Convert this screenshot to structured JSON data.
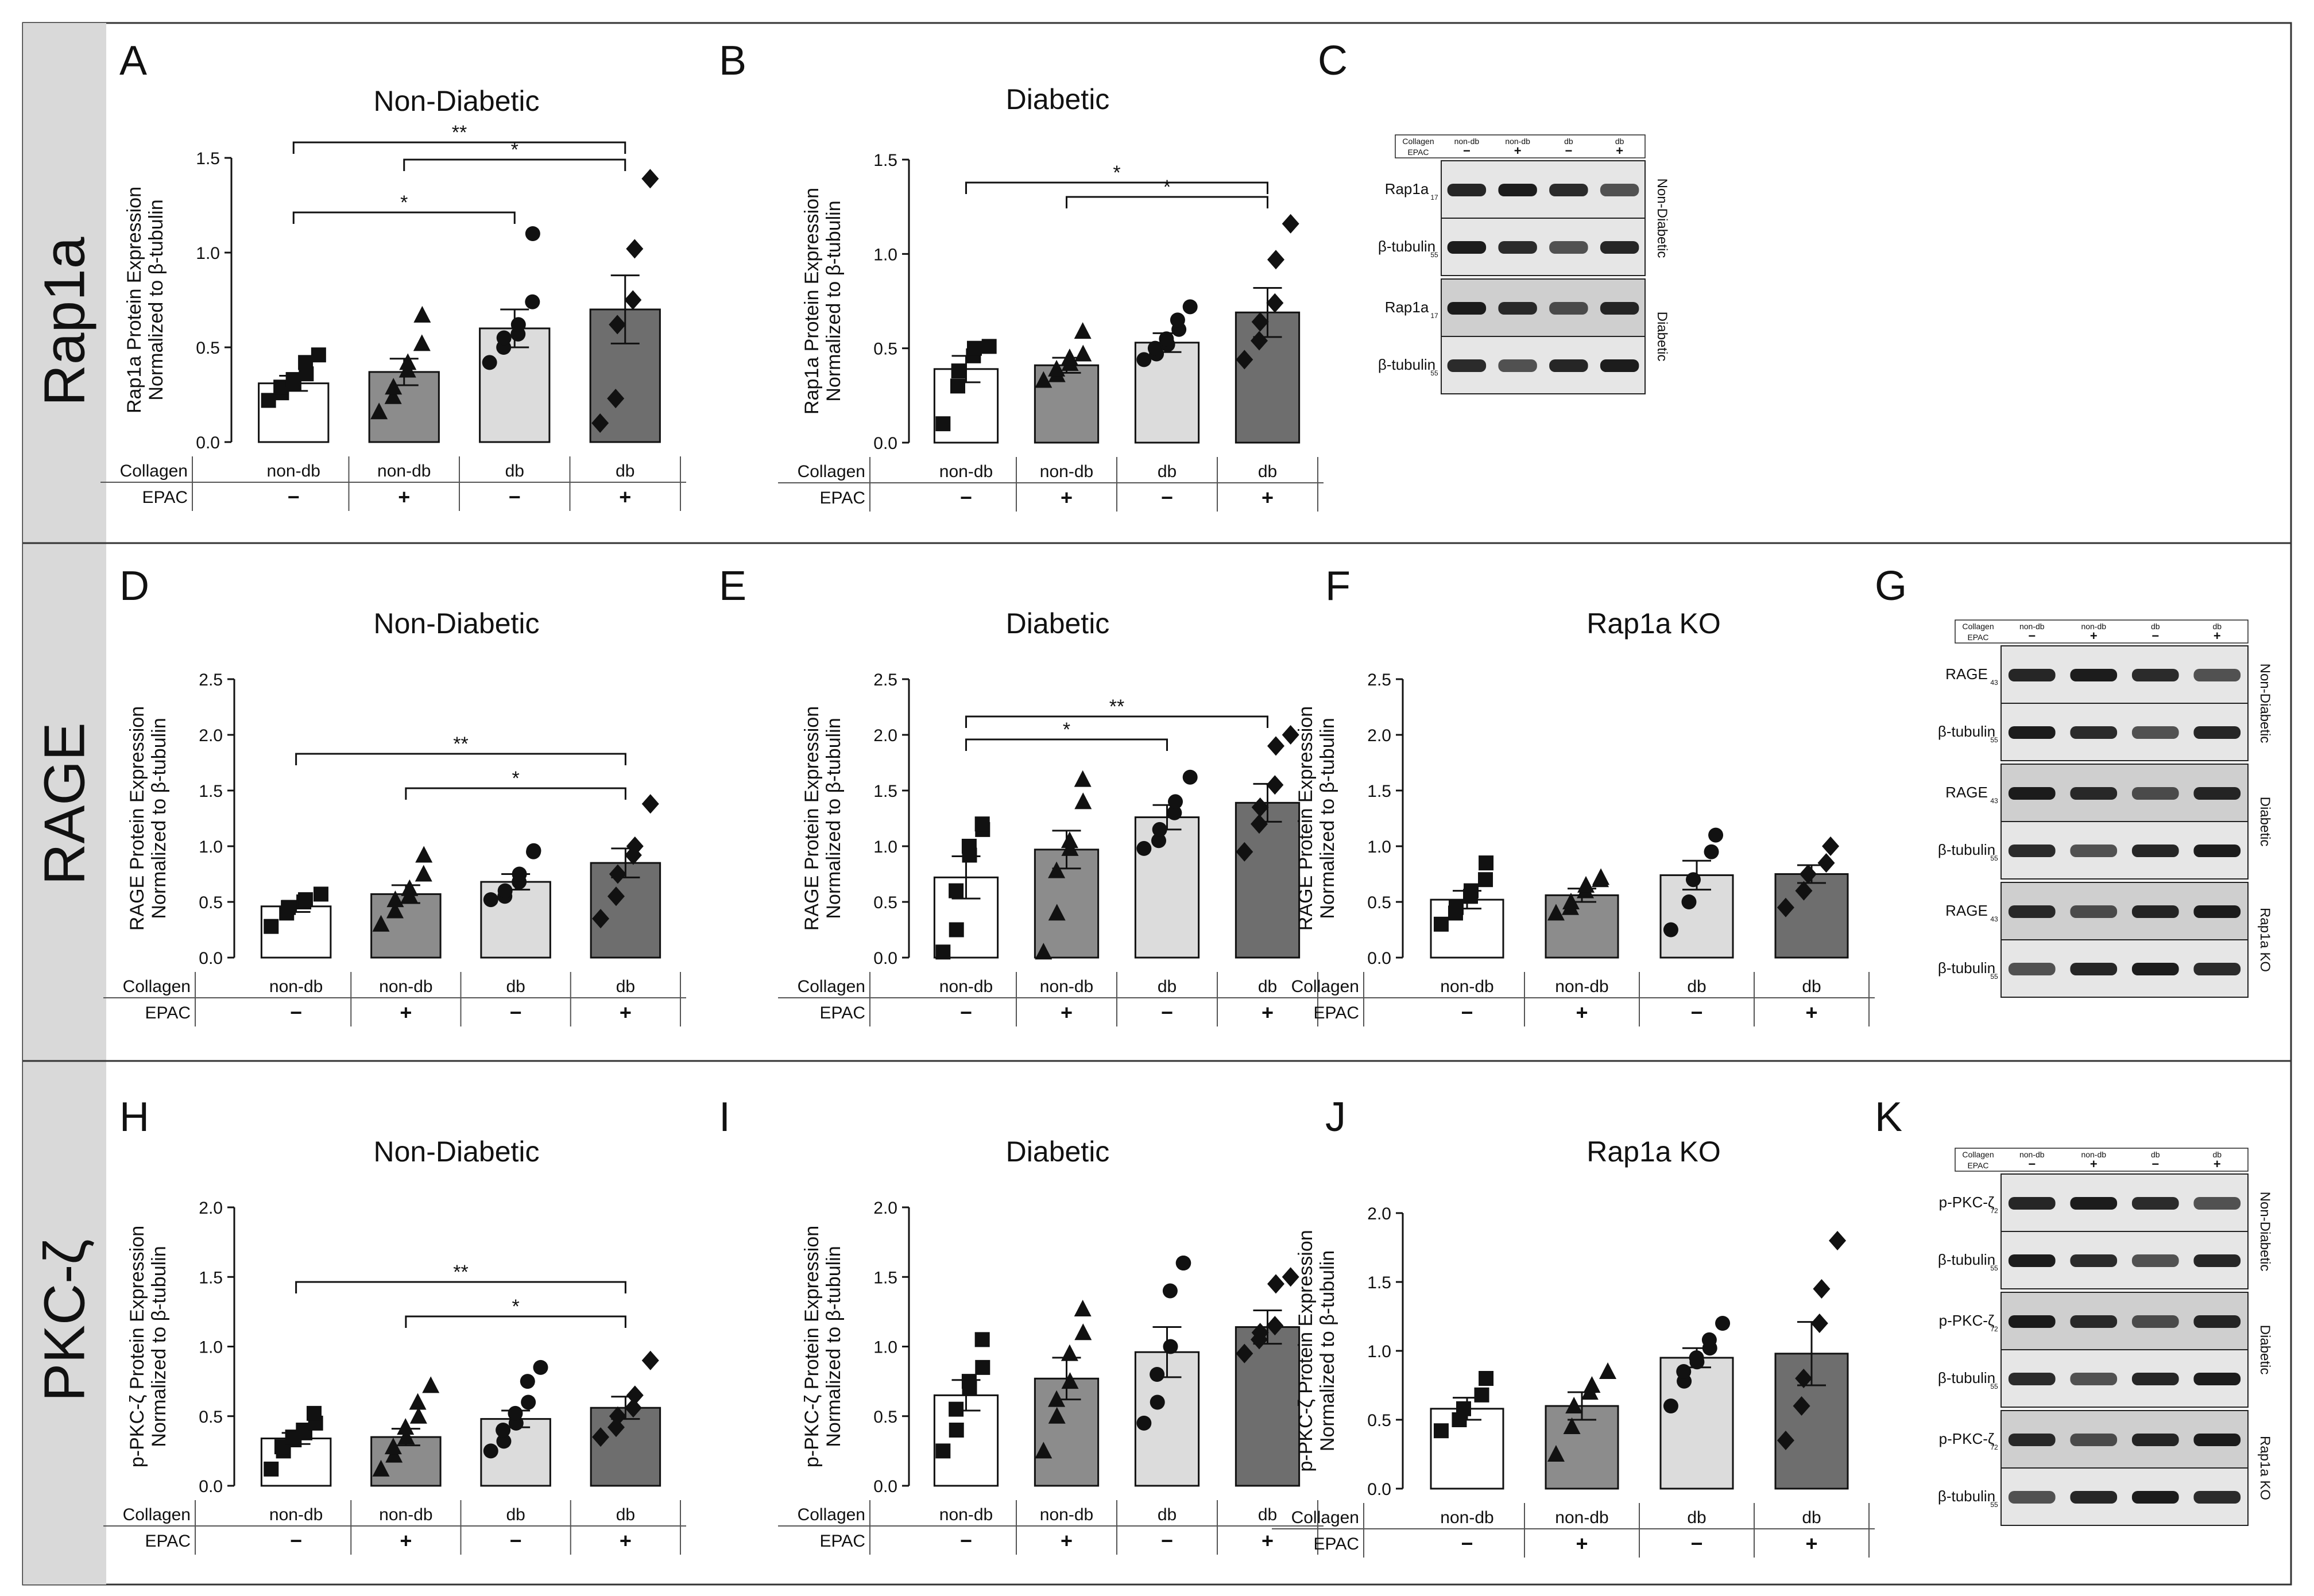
{
  "figure": {
    "rows": [
      {
        "label": "Rap1a",
        "name": "row-label-rap1a"
      },
      {
        "label": "RAGE",
        "name": "row-label-rage"
      },
      {
        "label": "PKC-ζ",
        "name": "row-label-pkc-zeta"
      }
    ],
    "collagen_label": "Collagen",
    "epac_label": "EPAC",
    "collagen_values": [
      "non-db",
      "non-db",
      "db",
      "db"
    ],
    "epac_values": [
      "−",
      "+",
      "−",
      "+"
    ],
    "bar_colors": [
      "#ffffff",
      "#8c8c8c",
      "#dcdcdc",
      "#6e6e6e"
    ]
  },
  "chart_data": [
    {
      "panel": "A",
      "type": "bar",
      "title": "Non-Diabetic",
      "ylabel": [
        "Rap1a Protein Expression",
        "Normalized to β-tubulin"
      ],
      "ylim": [
        0,
        1.5
      ],
      "yticks": [
        "0.0",
        "0.5",
        "1.0",
        "1.5"
      ],
      "categories": [
        "non-db/−",
        "non-db/+",
        "db/−",
        "db/+"
      ],
      "values": [
        0.31,
        0.37,
        0.6,
        0.7
      ],
      "sem": [
        0.04,
        0.07,
        0.1,
        0.18
      ],
      "points": [
        [
          0.22,
          0.26,
          0.29,
          0.31,
          0.33,
          0.36,
          0.42,
          0.46
        ],
        [
          0.16,
          0.24,
          0.29,
          0.38,
          0.42,
          0.52,
          0.67
        ],
        [
          0.42,
          0.5,
          0.55,
          0.57,
          0.62,
          0.74,
          1.1
        ],
        [
          0.1,
          0.23,
          0.62,
          0.75,
          1.02,
          1.39
        ]
      ],
      "markers": [
        "square",
        "triangle",
        "circle",
        "diamond"
      ],
      "significance": [
        {
          "from": 0,
          "to": 3,
          "label": "**"
        },
        {
          "from": 1,
          "to": 3,
          "label": "*"
        },
        {
          "from": 0,
          "to": 2,
          "label": "*"
        }
      ]
    },
    {
      "panel": "B",
      "type": "bar",
      "title": "Diabetic",
      "ylabel": [
        "Rap1a Protein Expression",
        "Normalized to β-tubulin"
      ],
      "ylim": [
        0,
        1.5
      ],
      "yticks": [
        "0.0",
        "0.5",
        "1.0",
        "1.5"
      ],
      "categories": [
        "non-db/−",
        "non-db/+",
        "db/−",
        "db/+"
      ],
      "values": [
        0.39,
        0.41,
        0.53,
        0.69
      ],
      "sem": [
        0.07,
        0.04,
        0.05,
        0.13
      ],
      "points": [
        [
          0.1,
          0.3,
          0.38,
          0.46,
          0.5,
          0.51
        ],
        [
          0.33,
          0.36,
          0.39,
          0.42,
          0.45,
          0.47,
          0.59
        ],
        [
          0.44,
          0.47,
          0.5,
          0.52,
          0.55,
          0.6,
          0.65,
          0.72
        ],
        [
          0.44,
          0.54,
          0.64,
          0.74,
          0.97,
          1.16
        ]
      ],
      "markers": [
        "square",
        "triangle",
        "circle",
        "diamond"
      ],
      "significance": [
        {
          "from": 0,
          "to": 3,
          "label": "*"
        },
        {
          "from": 1,
          "to": 3,
          "label": "*"
        }
      ]
    },
    {
      "panel": "D",
      "type": "bar",
      "title": "Non-Diabetic",
      "ylabel": [
        "RAGE Protein Expression",
        "Normalized to β-tubulin"
      ],
      "ylim": [
        0,
        2.5
      ],
      "yticks": [
        "0.0",
        "0.5",
        "1.0",
        "1.5",
        "2.0",
        "2.5"
      ],
      "categories": [
        "non-db/−",
        "non-db/+",
        "db/−",
        "db/+"
      ],
      "values": [
        0.46,
        0.57,
        0.68,
        0.85
      ],
      "sem": [
        0.05,
        0.08,
        0.07,
        0.13
      ],
      "points": [
        [
          0.28,
          0.4,
          0.45,
          0.5,
          0.52,
          0.57
        ],
        [
          0.3,
          0.42,
          0.52,
          0.56,
          0.62,
          0.75,
          0.92
        ],
        [
          0.52,
          0.55,
          0.6,
          0.68,
          0.75,
          0.95,
          0.96
        ],
        [
          0.35,
          0.55,
          0.75,
          0.92,
          1.0,
          1.38
        ]
      ],
      "markers": [
        "square",
        "triangle",
        "circle",
        "diamond"
      ],
      "significance": [
        {
          "from": 0,
          "to": 3,
          "label": "**"
        },
        {
          "from": 1,
          "to": 3,
          "label": "*"
        }
      ]
    },
    {
      "panel": "E",
      "type": "bar",
      "title": "Diabetic",
      "ylabel": [
        "RAGE Protein Expression",
        "Normalized to β-tubulin"
      ],
      "ylim": [
        0,
        2.5
      ],
      "yticks": [
        "0.0",
        "0.5",
        "1.0",
        "1.5",
        "2.0",
        "2.5"
      ],
      "categories": [
        "non-db/−",
        "non-db/+",
        "db/−",
        "db/+"
      ],
      "values": [
        0.72,
        0.97,
        1.26,
        1.39
      ],
      "sem": [
        0.19,
        0.17,
        0.11,
        0.17
      ],
      "points": [
        [
          0.05,
          0.25,
          0.6,
          0.92,
          1.0,
          1.15,
          1.2
        ],
        [
          0.05,
          0.4,
          0.78,
          0.98,
          1.05,
          1.4,
          1.6
        ],
        [
          0.98,
          1.05,
          1.15,
          1.3,
          1.4,
          1.62
        ],
        [
          0.95,
          1.2,
          1.35,
          1.55,
          1.9,
          2.0
        ]
      ],
      "markers": [
        "square",
        "triangle",
        "circle",
        "diamond"
      ],
      "significance": [
        {
          "from": 0,
          "to": 2,
          "label": "*"
        },
        {
          "from": 0,
          "to": 3,
          "label": "**"
        }
      ]
    },
    {
      "panel": "F",
      "type": "bar",
      "title": "Rap1a KO",
      "ylabel": [
        "RAGE Protein Expression",
        "Normalized to β-tubulin"
      ],
      "ylim": [
        0,
        2.5
      ],
      "yticks": [
        "0.0",
        "0.5",
        "1.0",
        "1.5",
        "2.0",
        "2.5"
      ],
      "categories": [
        "non-db/−",
        "non-db/+",
        "db/−",
        "db/+"
      ],
      "values": [
        0.52,
        0.56,
        0.74,
        0.75
      ],
      "sem": [
        0.08,
        0.06,
        0.13,
        0.08
      ],
      "points": [
        [
          0.3,
          0.4,
          0.45,
          0.55,
          0.6,
          0.7,
          0.85
        ],
        [
          0.4,
          0.45,
          0.5,
          0.6,
          0.65,
          0.7,
          0.72
        ],
        [
          0.25,
          0.5,
          0.7,
          0.95,
          1.1
        ],
        [
          0.45,
          0.6,
          0.75,
          0.85,
          1.0
        ]
      ],
      "markers": [
        "square",
        "triangle",
        "circle",
        "diamond"
      ],
      "significance": []
    },
    {
      "panel": "H",
      "type": "bar",
      "title": "Non-Diabetic",
      "ylabel": [
        "p-PKC-ζ Protein Expression",
        "Normalized to β-tubulin"
      ],
      "ylim": [
        0,
        2.0
      ],
      "yticks": [
        "0.0",
        "0.5",
        "1.0",
        "1.5",
        "2.0"
      ],
      "categories": [
        "non-db/−",
        "non-db/+",
        "db/−",
        "db/+"
      ],
      "values": [
        0.34,
        0.35,
        0.48,
        0.56
      ],
      "sem": [
        0.04,
        0.06,
        0.06,
        0.08
      ],
      "points": [
        [
          0.12,
          0.25,
          0.28,
          0.33,
          0.35,
          0.38,
          0.4,
          0.45,
          0.52
        ],
        [
          0.12,
          0.22,
          0.28,
          0.35,
          0.42,
          0.5,
          0.6,
          0.72
        ],
        [
          0.25,
          0.32,
          0.4,
          0.45,
          0.52,
          0.6,
          0.75,
          0.85
        ],
        [
          0.35,
          0.42,
          0.5,
          0.56,
          0.65,
          0.9
        ]
      ],
      "markers": [
        "square",
        "triangle",
        "circle",
        "diamond"
      ],
      "significance": [
        {
          "from": 0,
          "to": 3,
          "label": "**"
        },
        {
          "from": 1,
          "to": 3,
          "label": "*"
        }
      ]
    },
    {
      "panel": "I",
      "type": "bar",
      "title": "Diabetic",
      "ylabel": [
        "p-PKC-ζ Protein Expression",
        "Normalized to β-tubulin"
      ],
      "ylim": [
        0,
        2.0
      ],
      "yticks": [
        "0.0",
        "0.5",
        "1.0",
        "1.5",
        "2.0"
      ],
      "categories": [
        "non-db/−",
        "non-db/+",
        "db/−",
        "db/+"
      ],
      "values": [
        0.65,
        0.77,
        0.96,
        1.14
      ],
      "sem": [
        0.11,
        0.15,
        0.18,
        0.12
      ],
      "points": [
        [
          0.25,
          0.4,
          0.55,
          0.7,
          0.75,
          0.85,
          1.05
        ],
        [
          0.25,
          0.5,
          0.62,
          0.75,
          0.95,
          1.1,
          1.27
        ],
        [
          0.45,
          0.6,
          0.8,
          1.0,
          1.4,
          1.6,
          1.6
        ],
        [
          0.95,
          1.05,
          1.1,
          1.15,
          1.45,
          1.5
        ]
      ],
      "markers": [
        "square",
        "triangle",
        "circle",
        "diamond"
      ],
      "significance": []
    },
    {
      "panel": "J",
      "type": "bar",
      "title": "Rap1a KO",
      "ylabel": [
        "p-PKC-ζ Protein Expression",
        "Normalized to β-tubulin"
      ],
      "ylim": [
        0,
        2.0
      ],
      "yticks": [
        "0.0",
        "0.5",
        "1.0",
        "1.5",
        "2.0"
      ],
      "categories": [
        "non-db/−",
        "non-db/+",
        "db/−",
        "db/+"
      ],
      "values": [
        0.58,
        0.6,
        0.95,
        0.98
      ],
      "sem": [
        0.08,
        0.1,
        0.07,
        0.23
      ],
      "points": [
        [
          0.42,
          0.5,
          0.58,
          0.68,
          0.8
        ],
        [
          0.25,
          0.45,
          0.6,
          0.7,
          0.75,
          0.85
        ],
        [
          0.6,
          0.78,
          0.85,
          0.92,
          0.95,
          1.02,
          1.08,
          1.2
        ],
        [
          0.35,
          0.6,
          0.8,
          1.2,
          1.45,
          1.8
        ]
      ],
      "markers": [
        "square",
        "triangle",
        "circle",
        "diamond"
      ],
      "significance": []
    }
  ],
  "blots": [
    {
      "panel": "C",
      "header_collagen": [
        "Collagen",
        "non-db",
        "non-db",
        "db",
        "db"
      ],
      "header_epac": [
        "EPAC",
        "−",
        "+",
        "−",
        "+"
      ],
      "groups": [
        {
          "condition": "Non-Diabetic",
          "bands": [
            {
              "label": "Rap1a",
              "mw": "17"
            },
            {
              "label": "β-tubulin",
              "mw": "55"
            }
          ]
        },
        {
          "condition": "Diabetic",
          "bands": [
            {
              "label": "Rap1a",
              "mw": "17"
            },
            {
              "label": "β-tubulin",
              "mw": "55"
            }
          ]
        }
      ]
    },
    {
      "panel": "G",
      "header_collagen": [
        "Collagen",
        "non-db",
        "non-db",
        "db",
        "db"
      ],
      "header_epac": [
        "EPAC",
        "−",
        "+",
        "−",
        "+"
      ],
      "groups": [
        {
          "condition": "Non-Diabetic",
          "bands": [
            {
              "label": "RAGE",
              "mw": "43"
            },
            {
              "label": "β-tubulin",
              "mw": "55"
            }
          ]
        },
        {
          "condition": "Diabetic",
          "bands": [
            {
              "label": "RAGE",
              "mw": "43"
            },
            {
              "label": "β-tubulin",
              "mw": "55"
            }
          ]
        },
        {
          "condition": "Rap1a KO",
          "bands": [
            {
              "label": "RAGE",
              "mw": "43"
            },
            {
              "label": "β-tubulin",
              "mw": "55"
            }
          ]
        }
      ]
    },
    {
      "panel": "K",
      "header_collagen": [
        "Collagen",
        "non-db",
        "non-db",
        "db",
        "db"
      ],
      "header_epac": [
        "EPAC",
        "−",
        "+",
        "−",
        "+"
      ],
      "groups": [
        {
          "condition": "Non-Diabetic",
          "bands": [
            {
              "label": "p-PKC-ζ",
              "mw": "72"
            },
            {
              "label": "β-tubulin",
              "mw": "55"
            }
          ]
        },
        {
          "condition": "Diabetic",
          "bands": [
            {
              "label": "p-PKC-ζ",
              "mw": "72"
            },
            {
              "label": "β-tubulin",
              "mw": "55"
            }
          ]
        },
        {
          "condition": "Rap1a KO",
          "bands": [
            {
              "label": "p-PKC-ζ",
              "mw": "72"
            },
            {
              "label": "β-tubulin",
              "mw": "55"
            }
          ]
        }
      ]
    }
  ]
}
